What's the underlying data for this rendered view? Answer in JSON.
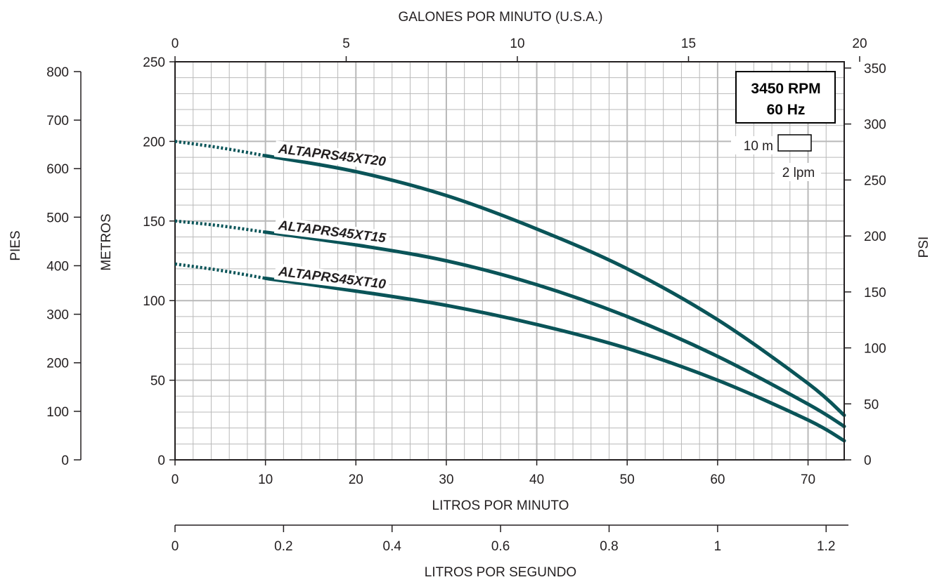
{
  "chart_data": {
    "type": "line",
    "x_bottom": {
      "label": "LITROS POR MINUTO",
      "range": [
        0,
        74
      ],
      "ticks": [
        0,
        10,
        20,
        30,
        40,
        50,
        60,
        70
      ],
      "tick_labels": [
        "0",
        "10",
        "20",
        "30",
        "40",
        "50",
        "60",
        "70"
      ]
    },
    "x_top": {
      "label": "GALONES POR MINUTO (U.S.A.)",
      "ticks": [
        0,
        5,
        10,
        15,
        20
      ],
      "tick_labels": [
        "0",
        "5",
        "10",
        "15",
        "20"
      ]
    },
    "x_lps": {
      "label": "LITROS POR SEGUNDO",
      "ticks": [
        0,
        0.2,
        0.4,
        0.6,
        0.8,
        1,
        1.2
      ],
      "tick_labels": [
        "0",
        "0.2",
        "0.4",
        "0.6",
        "0.8",
        "1",
        "1.2"
      ]
    },
    "y_metros": {
      "label": "METROS",
      "range": [
        0,
        250
      ],
      "ticks": [
        0,
        50,
        100,
        150,
        200,
        250
      ],
      "tick_labels": [
        "0",
        "50",
        "100",
        "150",
        "200",
        "250"
      ]
    },
    "y_pies": {
      "label": "PIES",
      "ticks": [
        0,
        100,
        200,
        300,
        400,
        500,
        600,
        700,
        800
      ],
      "tick_labels": [
        "0",
        "100",
        "200",
        "300",
        "400",
        "500",
        "600",
        "700",
        "800"
      ]
    },
    "y_psi": {
      "label": "PSI",
      "ticks": [
        0,
        50,
        100,
        150,
        200,
        250,
        300,
        350
      ],
      "tick_labels": [
        "0",
        "50",
        "100",
        "150",
        "200",
        "250",
        "300",
        "350"
      ]
    },
    "grid": true,
    "legend_box": {
      "line1": "3450 RPM",
      "line2": "60 Hz"
    },
    "scale_note": {
      "vertical": "10 m",
      "horizontal": "2 lpm"
    },
    "series": [
      {
        "name": "ALTAPRS45XT20",
        "dotted_until": 10,
        "points": [
          [
            0,
            200
          ],
          [
            5,
            196
          ],
          [
            10,
            191
          ],
          [
            20,
            181
          ],
          [
            30,
            166
          ],
          [
            40,
            145
          ],
          [
            50,
            120
          ],
          [
            60,
            88
          ],
          [
            70,
            48
          ],
          [
            74,
            28
          ]
        ]
      },
      {
        "name": "ALTAPRS45XT15",
        "dotted_until": 10,
        "points": [
          [
            0,
            150
          ],
          [
            5,
            147
          ],
          [
            10,
            143
          ],
          [
            20,
            135
          ],
          [
            30,
            125
          ],
          [
            40,
            110
          ],
          [
            50,
            90
          ],
          [
            60,
            65
          ],
          [
            70,
            35
          ],
          [
            74,
            21
          ]
        ]
      },
      {
        "name": "ALTAPRS45XT10",
        "dotted_until": 10,
        "points": [
          [
            0,
            123
          ],
          [
            5,
            119
          ],
          [
            10,
            114
          ],
          [
            20,
            106
          ],
          [
            30,
            97
          ],
          [
            40,
            85
          ],
          [
            50,
            70
          ],
          [
            60,
            50
          ],
          [
            70,
            25
          ],
          [
            74,
            12
          ]
        ]
      }
    ],
    "colors": {
      "curve": "#0a5458",
      "grid": "#b9b9b9",
      "axis": "#231f20"
    }
  }
}
